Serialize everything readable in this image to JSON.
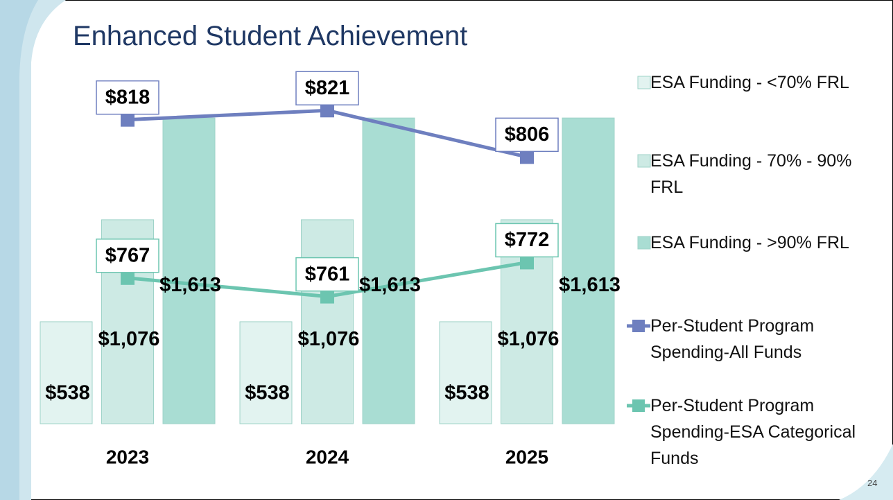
{
  "title": "Enhanced Student Achievement",
  "page_number": "24",
  "chart_data": {
    "type": "bar",
    "categories": [
      "2023",
      "2024",
      "2025"
    ],
    "ylim": [
      0,
      1800
    ],
    "y2lim": [
      720,
      830
    ],
    "series": [
      {
        "name": "ESA Funding - <70% FRL",
        "color": "#e2f3f0",
        "values": [
          538,
          538,
          538
        ],
        "value_labels": [
          "$538",
          "$538",
          "$538"
        ]
      },
      {
        "name": "ESA Funding - 70% - 90% FRL",
        "color": "#cdeae4",
        "values": [
          1076,
          1076,
          1076
        ],
        "value_labels": [
          "$1,076",
          "$1,076",
          "$1,076"
        ]
      },
      {
        "name": "ESA Funding - >90% FRL",
        "color": "#a9ddd3",
        "values": [
          1613,
          1613,
          1613
        ],
        "value_labels": [
          "$1,613",
          "$1,613",
          "$1,613"
        ]
      },
      {
        "name": "Per-Student Program Spending-All Funds",
        "color": "#6e7fbf",
        "type": "line",
        "axis": "y2",
        "values": [
          818,
          821,
          806
        ],
        "value_labels": [
          "$818",
          "$821",
          "$806"
        ]
      },
      {
        "name": "Per-Student Program Spending-ESA Categorical Funds",
        "color": "#6cc5b0",
        "type": "line",
        "axis": "y2",
        "values": [
          767,
          761,
          772
        ],
        "value_labels": [
          "$767",
          "$761",
          "$772"
        ]
      }
    ]
  }
}
